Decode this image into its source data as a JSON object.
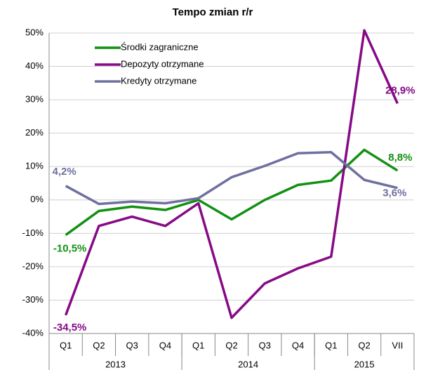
{
  "chart_data": {
    "type": "line",
    "title": "Tempo zmian r/r",
    "categories": [
      "Q1",
      "Q2",
      "Q3",
      "Q4",
      "Q1",
      "Q2",
      "Q3",
      "Q4",
      "Q1",
      "Q2",
      "VII"
    ],
    "groups": [
      {
        "label": "2013",
        "size": 4
      },
      {
        "label": "2014",
        "size": 4
      },
      {
        "label": "2015",
        "size": 3
      }
    ],
    "series": [
      {
        "name": "Środki zagraniczne",
        "color": "#139013",
        "values": [
          -10.5,
          -3.3,
          -2.0,
          -3.0,
          0.0,
          -5.8,
          0.0,
          4.5,
          5.8,
          15.0,
          8.8
        ],
        "value_labels": [
          "-10,5%",
          null,
          null,
          null,
          null,
          null,
          null,
          null,
          null,
          null,
          "8,8%"
        ]
      },
      {
        "name": "Depozyty otrzymane",
        "color": "#860a86",
        "values": [
          -34.5,
          -7.8,
          -5.0,
          -7.8,
          -1.0,
          -35.3,
          -25.0,
          -20.5,
          -17.0,
          50.8,
          28.9
        ],
        "value_labels": [
          "-34,5%",
          null,
          null,
          null,
          null,
          null,
          null,
          null,
          null,
          null,
          "28,9%"
        ]
      },
      {
        "name": "Kredyty otrzymane",
        "color": "#6f6fa0",
        "values": [
          4.2,
          -1.2,
          -0.5,
          -1.0,
          0.5,
          6.8,
          10.2,
          14.0,
          14.3,
          6.0,
          3.6
        ],
        "value_labels": [
          "4,2%",
          null,
          null,
          null,
          null,
          null,
          null,
          null,
          null,
          null,
          "3,6%"
        ]
      }
    ],
    "ylim": [
      -40,
      50
    ],
    "yticks": [
      {
        "value": -40,
        "label": "-40%"
      },
      {
        "value": -30,
        "label": "-30%"
      },
      {
        "value": -20,
        "label": "-20%"
      },
      {
        "value": -10,
        "label": "-10%"
      },
      {
        "value": 0,
        "label": "0%"
      },
      {
        "value": 10,
        "label": "10%"
      },
      {
        "value": 20,
        "label": "20%"
      },
      {
        "value": 30,
        "label": "30%"
      },
      {
        "value": 40,
        "label": "40%"
      },
      {
        "value": 50,
        "label": "50%"
      }
    ],
    "grid": true,
    "legend": "upper left"
  }
}
